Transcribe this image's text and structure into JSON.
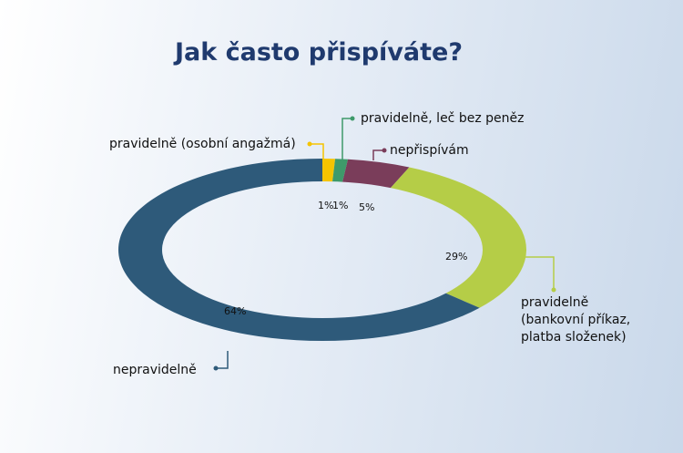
{
  "chart_data": {
    "type": "pie",
    "title": "Jak často přispíváte?",
    "categories": [
      "pravidelně (osobní angažmá)",
      "pravidelně, leč bez peněz",
      "nepřispívám",
      "pravidelně (bankovní příkaz, platba složenek)",
      "nepravidelně"
    ],
    "values": [
      1,
      1,
      5,
      29,
      64
    ],
    "value_labels": [
      "1%",
      "1%",
      "5%",
      "29%",
      "64%"
    ],
    "colors": [
      "#f5c400",
      "#3e9a6a",
      "#7a3d5a",
      "#b5cd47",
      "#2e5a7a"
    ],
    "category_lines": [
      [
        "pravidelně (osobní angažmá)"
      ],
      [
        "pravidelně, leč bez peněz"
      ],
      [
        "nepřispívám"
      ],
      [
        "pravidelně",
        "(bankovní příkaz,",
        "platba složenek)"
      ],
      [
        "nepravidelně"
      ]
    ]
  }
}
